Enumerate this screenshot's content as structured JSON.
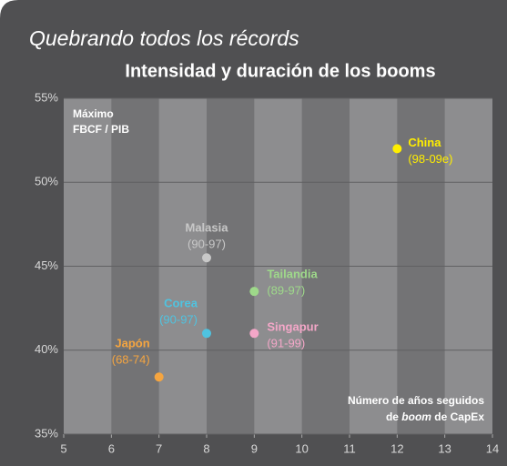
{
  "chart_data": {
    "type": "scatter",
    "title": "Quebrando todos los récords",
    "subtitle": "Intensidad y duración de los booms",
    "y_label": [
      "Máximo",
      "FBCF / PIB"
    ],
    "x_label": {
      "line1": "Número de años seguidos",
      "line2": [
        "de ",
        "boom",
        " de CapEx"
      ]
    },
    "xlim": [
      5,
      14
    ],
    "xticks": [
      5,
      6,
      7,
      8,
      9,
      10,
      11,
      12,
      13,
      14
    ],
    "ylim": [
      35,
      55
    ],
    "yticks": [
      {
        "value": 35,
        "label": "35%"
      },
      {
        "value": 40,
        "label": "40%"
      },
      {
        "value": 45,
        "label": "45%"
      },
      {
        "value": 50,
        "label": "50%"
      },
      {
        "value": 55,
        "label": "55%"
      }
    ],
    "grid": true,
    "series": [
      {
        "name": "China",
        "period": "(98-09e)",
        "color": "#ffee00",
        "x": [
          12
        ],
        "values": [
          52
        ]
      },
      {
        "name": "Malasia",
        "period": "(90-97)",
        "color": "#c8c8c8",
        "x": [
          8
        ],
        "values": [
          45.5
        ]
      },
      {
        "name": "Tailandia",
        "period": "(89-97)",
        "color": "#9ed98a",
        "x": [
          9
        ],
        "values": [
          43.5
        ]
      },
      {
        "name": "Corea",
        "period": "(90-97)",
        "color": "#4fc3e0",
        "x": [
          8
        ],
        "values": [
          41
        ]
      },
      {
        "name": "Singapur",
        "period": "(91-99)",
        "color": "#f4a7c8",
        "x": [
          9
        ],
        "values": [
          41
        ]
      },
      {
        "name": "Japón",
        "period": "(68-74)",
        "color": "#f5a540",
        "x": [
          7
        ],
        "values": [
          38.4
        ]
      }
    ]
  }
}
